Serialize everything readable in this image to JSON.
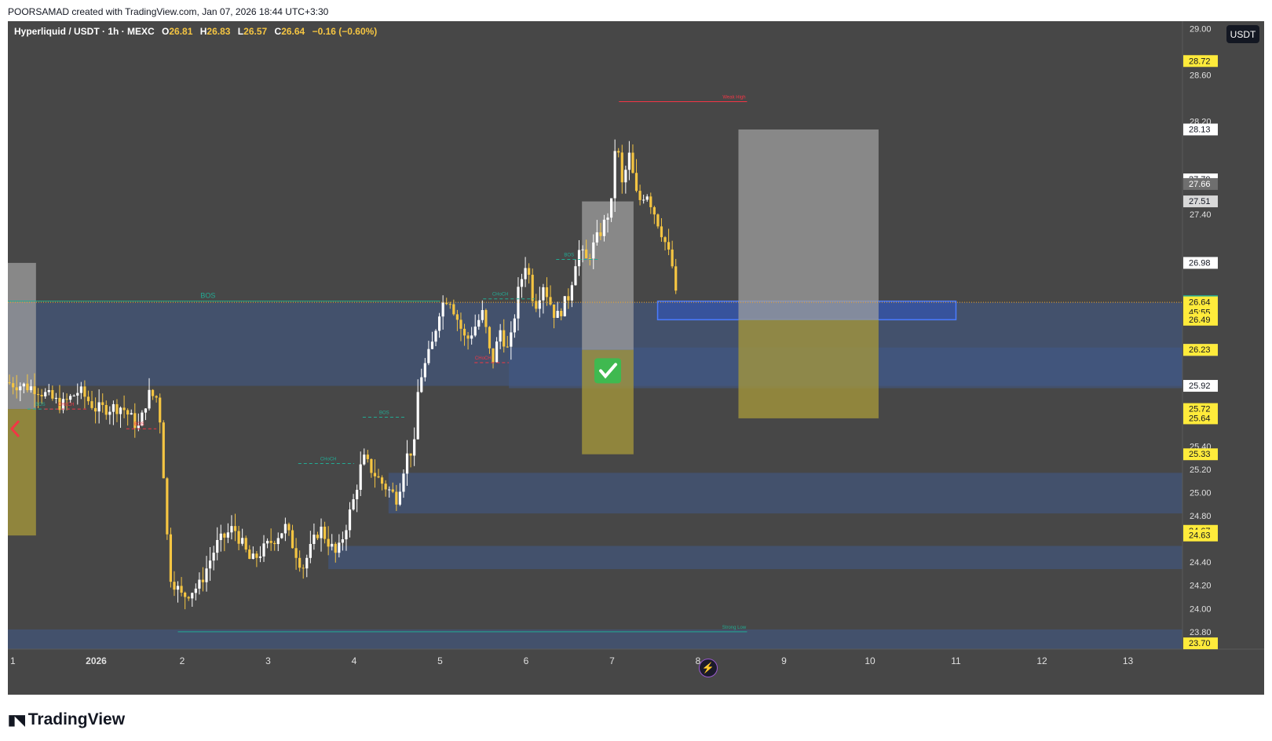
{
  "header": {
    "credit": "POORSAMAD created with TradingView.com, Jan 07, 2026 18:44 UTC+3:30"
  },
  "legend": {
    "symbol": "Hyperliquid / USDT · 1h · MEXC",
    "open_label": "O",
    "open": "26.81",
    "high_label": "H",
    "high": "26.83",
    "low_label": "L",
    "low": "26.57",
    "close_label": "C",
    "close": "26.64",
    "change": "−0.16 (−0.60%)"
  },
  "currency_button": "USDT",
  "footer": {
    "logo_text": "TradingView",
    "logo_icon": "tradingview-logo-icon"
  },
  "colors": {
    "background": "#474747",
    "candle_up": "#ffffff",
    "candle_down": "#f5c542",
    "zone_blue": "#3f5a8a",
    "zone_gray": "#9e9e9e",
    "zone_olive": "#a89a3a",
    "label_yellow": "#ffeb3b",
    "label_green": "#22ab94"
  },
  "chart_data": {
    "type": "candlestick",
    "ylim": [
      23.65,
      29.05
    ],
    "yticks": [
      "29.00",
      "28.60",
      "28.20",
      "27.40",
      "25.40",
      "25.20",
      "25.00",
      "24.80",
      "24.40",
      "24.20",
      "24.00",
      "23.80"
    ],
    "xticks": [
      "1",
      "2026",
      "2",
      "3",
      "4",
      "5",
      "6",
      "7",
      "8",
      "9",
      "10",
      "11",
      "12",
      "13"
    ],
    "xtick_days": [
      0,
      1,
      2,
      3,
      4,
      5,
      6,
      7,
      8,
      9,
      10,
      11,
      12,
      13
    ],
    "price_labels": [
      {
        "value": "28.72",
        "style": "yellow"
      },
      {
        "value": "28.13",
        "style": "white"
      },
      {
        "value": "27.70",
        "style": "white"
      },
      {
        "value": "27.66",
        "style": "gray"
      },
      {
        "value": "27.51",
        "style": "lightgray"
      },
      {
        "value": "26.98",
        "style": "white"
      },
      {
        "value": "26.65",
        "style": "green"
      },
      {
        "value": "26.64",
        "style": "yellow",
        "sub": "45:55"
      },
      {
        "value": "26.49",
        "style": "yellow"
      },
      {
        "value": "26.23",
        "style": "lightgray"
      },
      {
        "value": "26.23",
        "style": "yellow"
      },
      {
        "value": "25.92",
        "style": "white"
      },
      {
        "value": "25.72",
        "style": "yellow"
      },
      {
        "value": "25.64",
        "style": "yellow"
      },
      {
        "value": "25.33",
        "style": "yellow"
      },
      {
        "value": "24.67",
        "style": "yellow"
      },
      {
        "value": "24.63",
        "style": "yellow"
      },
      {
        "value": "23.70",
        "style": "yellow"
      }
    ],
    "current_price": 26.64,
    "path_points": [
      [
        -0.05,
        25.95
      ],
      [
        0.3,
        25.9
      ],
      [
        0.6,
        25.75
      ],
      [
        0.8,
        25.88
      ],
      [
        1.0,
        25.72
      ],
      [
        1.3,
        25.74
      ],
      [
        1.5,
        25.55
      ],
      [
        1.6,
        25.85
      ],
      [
        1.7,
        25.82
      ],
      [
        1.75,
        25.6
      ],
      [
        1.85,
        24.3
      ],
      [
        2.0,
        24.1
      ],
      [
        2.2,
        24.2
      ],
      [
        2.4,
        24.55
      ],
      [
        2.6,
        24.7
      ],
      [
        2.8,
        24.4
      ],
      [
        3.0,
        24.55
      ],
      [
        3.2,
        24.7
      ],
      [
        3.4,
        24.35
      ],
      [
        3.6,
        24.7
      ],
      [
        3.8,
        24.45
      ],
      [
        4.0,
        24.95
      ],
      [
        4.1,
        25.3
      ],
      [
        4.3,
        25.1
      ],
      [
        4.5,
        24.95
      ],
      [
        4.6,
        25.3
      ],
      [
        4.7,
        25.4
      ],
      [
        4.75,
        25.95
      ],
      [
        4.9,
        26.25
      ],
      [
        5.0,
        26.6
      ],
      [
        5.1,
        26.7
      ],
      [
        5.3,
        26.3
      ],
      [
        5.5,
        26.55
      ],
      [
        5.6,
        26.1
      ],
      [
        5.7,
        26.4
      ],
      [
        5.8,
        26.2
      ],
      [
        5.9,
        26.7
      ],
      [
        6.0,
        27.0
      ],
      [
        6.1,
        26.6
      ],
      [
        6.2,
        26.8
      ],
      [
        6.35,
        26.5
      ],
      [
        6.5,
        26.7
      ],
      [
        6.6,
        27.1
      ],
      [
        6.7,
        27.0
      ],
      [
        6.9,
        27.3
      ],
      [
        7.0,
        27.5
      ],
      [
        7.05,
        28.2
      ],
      [
        7.1,
        27.6
      ],
      [
        7.2,
        27.9
      ],
      [
        7.3,
        27.5
      ],
      [
        7.4,
        27.6
      ],
      [
        7.5,
        27.4
      ],
      [
        7.6,
        27.2
      ],
      [
        7.7,
        26.95
      ],
      [
        7.75,
        26.64
      ]
    ],
    "zones": [
      {
        "kind": "blue",
        "x0": -0.05,
        "x1": 13.7,
        "y0": 25.92,
        "y1": 26.64
      },
      {
        "kind": "blue",
        "x0": 5.8,
        "x1": 13.7,
        "y0": 25.9,
        "y1": 26.25
      },
      {
        "kind": "blue",
        "x0": 4.4,
        "x1": 13.7,
        "y0": 24.82,
        "y1": 25.17
      },
      {
        "kind": "blue",
        "x0": 3.7,
        "x1": 13.7,
        "y0": 24.34,
        "y1": 24.54
      },
      {
        "kind": "blue",
        "x0": -0.05,
        "x1": 13.7,
        "y0": 23.65,
        "y1": 23.82
      },
      {
        "kind": "blue_outline",
        "x0": 7.53,
        "x1": 11.0,
        "y0": 26.49,
        "y1": 26.65
      },
      {
        "kind": "gray",
        "x0": -0.05,
        "x1": 0.3,
        "y0": 25.72,
        "y1": 26.98
      },
      {
        "kind": "olive",
        "x0": -0.05,
        "x1": 0.3,
        "y0": 24.63,
        "y1": 25.72
      },
      {
        "kind": "gray",
        "x0": 6.65,
        "x1": 7.25,
        "y0": 26.23,
        "y1": 27.51
      },
      {
        "kind": "olive",
        "x0": 6.65,
        "x1": 7.25,
        "y0": 25.33,
        "y1": 26.23
      },
      {
        "kind": "gray",
        "x0": 8.47,
        "x1": 10.1,
        "y0": 26.49,
        "y1": 28.13
      },
      {
        "kind": "olive",
        "x0": 8.47,
        "x1": 10.1,
        "y0": 25.64,
        "y1": 26.49
      }
    ],
    "structure_lines": [
      {
        "label": "BOS",
        "color": "#22ab94",
        "style": "solid",
        "x0": -0.05,
        "x1": 5.0,
        "y": 26.65,
        "lx": 2.3
      },
      {
        "label": "BOS",
        "color": "#22ab94",
        "style": "dashed",
        "x0": 0.2,
        "x1": 0.7,
        "y": 25.72,
        "lx": 0.35
      },
      {
        "label": "CHoCH",
        "color": "#f23645",
        "style": "dashed",
        "x0": 0.4,
        "x1": 0.9,
        "y": 25.72,
        "lx": 0.65
      },
      {
        "label": "BOS",
        "color": "#f23645",
        "style": "dashed",
        "x0": 1.35,
        "x1": 1.7,
        "y": 25.55,
        "lx": 1.5
      },
      {
        "label": "CHoCH",
        "color": "#22ab94",
        "style": "dashed",
        "x0": 3.35,
        "x1": 4.0,
        "y": 25.25,
        "lx": 3.7
      },
      {
        "label": "BOS",
        "color": "#22ab94",
        "style": "dashed",
        "x0": 4.1,
        "x1": 4.6,
        "y": 25.65,
        "lx": 4.35
      },
      {
        "label": "CHoCH",
        "color": "#22ab94",
        "style": "dashed",
        "x0": 5.5,
        "x1": 6.1,
        "y": 26.67,
        "lx": 5.7
      },
      {
        "label": "CHoCH",
        "color": "#f23645",
        "style": "dashed",
        "x0": 5.4,
        "x1": 5.8,
        "y": 26.12,
        "lx": 5.5
      },
      {
        "label": "BOS",
        "color": "#22ab94",
        "style": "dashed",
        "x0": 6.35,
        "x1": 6.85,
        "y": 27.01,
        "lx": 6.5
      },
      {
        "label": "Weak High",
        "color": "#f23645",
        "style": "solid",
        "x0": 7.08,
        "x1": 8.57,
        "y": 28.37,
        "lx": 8.42
      },
      {
        "label": "Strong Low",
        "color": "#22ab94",
        "style": "solid",
        "x0": 1.95,
        "x1": 8.57,
        "y": 23.8,
        "lx": 8.42
      }
    ],
    "checkmark": {
      "day": 6.95,
      "value": 26.05
    }
  }
}
